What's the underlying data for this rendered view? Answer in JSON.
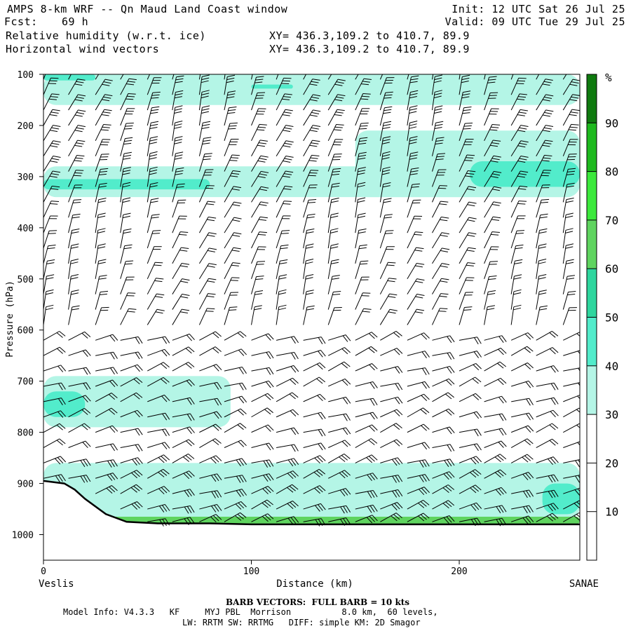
{
  "header": {
    "title": "AMPS 8-km WRF -- Qn Maud Land Coast window",
    "init": "Init: 12 UTC Sat 26 Jul 25",
    "fcst_label": "Fcst:",
    "fcst_value": "69 h",
    "valid": "Valid: 09 UTC Tue 29 Jul 25",
    "field1": "Relative humidity (w.r.t. ice)",
    "field1_xy": "XY= 436.3,109.2 to 410.7, 89.9",
    "field2": "Horizontal wind vectors",
    "field2_xy": "XY= 436.3,109.2 to 410.7, 89.9"
  },
  "footer": {
    "barb_note": "BARB VECTORS:  FULL BARB = 10 kts",
    "model_line1": "Model Info: V4.3.3   KF     MYJ PBL  Morrison          8.0 km,  60 levels,",
    "model_line2": "LW: RRTM SW: RRTMG   DIFF: simple KM: 2D Smagor"
  },
  "chart_data": {
    "type": "heatmap",
    "title": "Relative humidity (w.r.t. ice) / Horizontal wind vectors",
    "xlabel": "Distance (km)",
    "ylabel": "Pressure (hPa)",
    "x_ticks": [
      0,
      100,
      200
    ],
    "xlim": [
      0,
      258
    ],
    "y_ticks": [
      100,
      200,
      300,
      400,
      500,
      600,
      700,
      800,
      900,
      1000
    ],
    "ylim": [
      1050,
      100
    ],
    "x_left_label": "Veslis",
    "x_right_label": "SANAE",
    "colorbar": {
      "unit": "%",
      "ticks": [
        10,
        20,
        30,
        40,
        50,
        60,
        70,
        80,
        90
      ],
      "levels": [
        {
          "from": 0,
          "to": 30,
          "color": "#ffffff"
        },
        {
          "from": 30,
          "to": 40,
          "color": "#b4f5e6"
        },
        {
          "from": 40,
          "to": 50,
          "color": "#52eccb"
        },
        {
          "from": 50,
          "to": 60,
          "color": "#2ed69e"
        },
        {
          "from": 60,
          "to": 70,
          "color": "#5fd45f"
        },
        {
          "from": 70,
          "to": 80,
          "color": "#3ce93c"
        },
        {
          "from": 80,
          "to": 90,
          "color": "#1eb91e"
        },
        {
          "from": 90,
          "to": 100,
          "color": "#0f7a0f"
        }
      ]
    },
    "rh_regions": [
      {
        "level": "30-40",
        "x": [
          0,
          258
        ],
        "p": [
          100,
          160
        ]
      },
      {
        "level": "40-50",
        "x": [
          0,
          25
        ],
        "p": [
          100,
          112
        ]
      },
      {
        "level": "40-50",
        "x": [
          100,
          120
        ],
        "p": [
          120,
          128
        ]
      },
      {
        "level": "30-40",
        "x": [
          0,
          258
        ],
        "p": [
          280,
          340
        ]
      },
      {
        "level": "40-50",
        "x": [
          0,
          80
        ],
        "p": [
          305,
          325
        ]
      },
      {
        "level": "30-40",
        "x": [
          150,
          258
        ],
        "p": [
          210,
          340
        ]
      },
      {
        "level": "40-50",
        "x": [
          205,
          258
        ],
        "p": [
          270,
          320
        ]
      },
      {
        "level": "30-40",
        "x": [
          0,
          90
        ],
        "p": [
          690,
          790
        ]
      },
      {
        "level": "40-50",
        "x": [
          0,
          20
        ],
        "p": [
          720,
          770
        ]
      },
      {
        "level": "30-40",
        "x": [
          0,
          258
        ],
        "p": [
          860,
          970
        ]
      },
      {
        "level": "40-50",
        "x": [
          240,
          258
        ],
        "p": [
          900,
          960
        ]
      },
      {
        "level": "60-70",
        "x": [
          30,
          258
        ],
        "p": [
          965,
          980
        ]
      }
    ],
    "terrain": [
      {
        "x": 0,
        "p": 895
      },
      {
        "x": 10,
        "p": 900
      },
      {
        "x": 15,
        "p": 912
      },
      {
        "x": 20,
        "p": 930
      },
      {
        "x": 30,
        "p": 960
      },
      {
        "x": 40,
        "p": 975
      },
      {
        "x": 55,
        "p": 978
      },
      {
        "x": 80,
        "p": 978
      },
      {
        "x": 100,
        "p": 980
      },
      {
        "x": 150,
        "p": 980
      },
      {
        "x": 200,
        "p": 980
      },
      {
        "x": 258,
        "p": 980
      }
    ],
    "wind_columns": [
      0,
      12,
      25,
      37,
      50,
      62,
      75,
      87,
      100,
      112,
      125,
      137,
      150,
      162,
      175,
      187,
      200,
      212,
      225,
      237,
      250
    ],
    "wind_levels_hpa": [
      110,
      140,
      170,
      200,
      230,
      260,
      290,
      320,
      350,
      380,
      410,
      440,
      470,
      500,
      530,
      560,
      590,
      620,
      650,
      680,
      710,
      740,
      770,
      800,
      830,
      860,
      890,
      920,
      950,
      975
    ]
  }
}
